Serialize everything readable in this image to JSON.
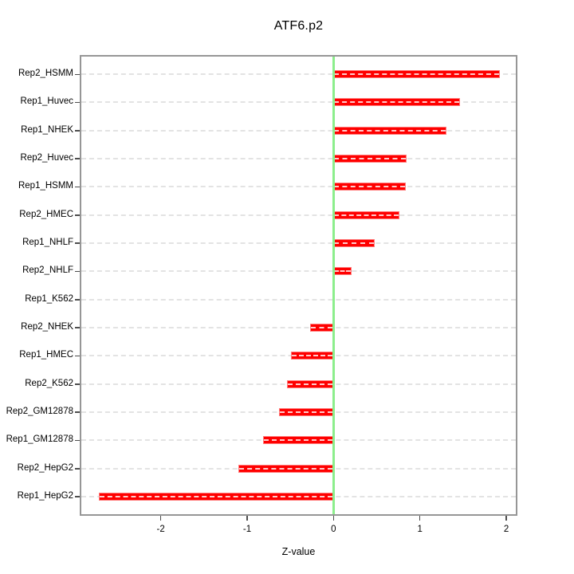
{
  "chart_data": {
    "type": "bar",
    "orientation": "horizontal",
    "title": "ATF6.p2",
    "xlabel": "Z-value",
    "ylabel": "",
    "categories": [
      "Rep2_HSMM",
      "Rep1_Huvec",
      "Rep1_NHEK",
      "Rep2_Huvec",
      "Rep1_HSMM",
      "Rep2_HMEC",
      "Rep1_NHLF",
      "Rep2_NHLF",
      "Rep1_K562",
      "Rep2_NHEK",
      "Rep1_HMEC",
      "Rep2_K562",
      "Rep2_GM12878",
      "Rep1_GM12878",
      "Rep2_HepG2",
      "Rep1_HepG2"
    ],
    "values": [
      1.93,
      1.46,
      1.31,
      0.85,
      0.84,
      0.76,
      0.48,
      0.21,
      0,
      -0.27,
      -0.49,
      -0.54,
      -0.63,
      -0.82,
      -1.1,
      -2.72
    ],
    "xlim": [
      -2.92,
      2.11
    ],
    "x_ticks": [
      "-2",
      "-1",
      "0",
      "1",
      "2"
    ],
    "x_tick_values": [
      -2,
      -1,
      0,
      1,
      2
    ],
    "grid": "dotted-horizontal",
    "legend": "none",
    "zero_line": true,
    "colors": {
      "bar": "#ff0000",
      "bar_edge": "#ff7a7a",
      "zero_line": "#8cee8c",
      "grid": "#e3e3e3",
      "frame": "#969696",
      "text": "#000000"
    }
  }
}
